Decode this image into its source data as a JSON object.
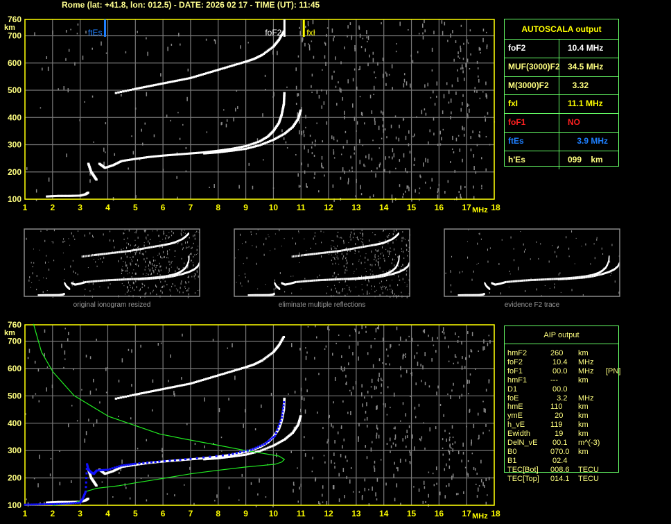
{
  "header": {
    "title": "Rome (lat: +41.8, lon: 012.5) - DATE: 2026 02 17 - TIME (UT): 11:45"
  },
  "colors": {
    "axis": "#ffff00",
    "grid": "#7a7a7a",
    "trace": "#ffffff",
    "noise": "#8a8a8a",
    "ftEs": "#1e7fff",
    "foF2": "#ffffff",
    "fxI": "#ffff00",
    "profile": "#22ee22",
    "fit": "#1010ff",
    "table_border": "#66ff66"
  },
  "autoscala": {
    "title": "AUTOSCALA output",
    "rows": [
      {
        "key": "foF2",
        "value": "10.4 MHz",
        "color": "#ffffff"
      },
      {
        "key": "MUF(3000)F2",
        "value": "34.5 MHz",
        "color": "#ffff80"
      },
      {
        "key": "M(3000)F2",
        "value": "  3.32",
        "color": "#ffff80"
      },
      {
        "key": "fxI",
        "value": "11.1 MHz",
        "color": "#ffff00"
      },
      {
        "key": "foF1",
        "value": "NO",
        "color": "#ff2020"
      },
      {
        "key": "ftEs",
        "value": "    3.9 MHz",
        "color": "#1e7fff"
      },
      {
        "key": "h'Es",
        "value": "099    km",
        "color": "#ffff80"
      }
    ]
  },
  "aip": {
    "title": "AIP output",
    "rows": [
      [
        "hmF2",
        "260",
        "km",
        ""
      ],
      [
        "foF2",
        " 10.4",
        "MHz",
        ""
      ],
      [
        "foF1",
        " 00.0",
        "MHz",
        "[PN]"
      ],
      [
        "hmF1",
        "---",
        "km",
        ""
      ],
      [
        "D1",
        " 00.0",
        "",
        ""
      ],
      [
        "foE",
        "   3.2",
        "MHz",
        ""
      ],
      [
        "hmE",
        "110",
        "km",
        ""
      ],
      [
        "ymE",
        "  20",
        "km",
        ""
      ],
      [
        "h_vE",
        "119",
        "km",
        ""
      ],
      [
        "Ewidth",
        "  19",
        "km",
        ""
      ],
      [
        "DelN_vE",
        " 00.1",
        "m^(-3)",
        ""
      ],
      [
        "B0",
        "070.0",
        "km",
        ""
      ],
      [
        "B1",
        " 02.4",
        "",
        ""
      ],
      [
        "TEC[Bot]",
        "008.6",
        "TECU",
        ""
      ],
      [
        "TEC[Top]",
        "014.1",
        "TECU",
        ""
      ]
    ]
  },
  "thumbnails": [
    {
      "caption": "original ionogram resized"
    },
    {
      "caption": "eliminate multiple reflections"
    },
    {
      "caption": "evidence F2 trace"
    }
  ],
  "chart_data": [
    {
      "type": "scatter",
      "title": "",
      "xlabel": "MHz",
      "ylabel": "km",
      "xlim": [
        1,
        18
      ],
      "ylim": [
        100,
        760
      ],
      "xticks": [
        "1",
        "2",
        "3",
        "4",
        "5",
        "6",
        "7",
        "8",
        "9",
        "10",
        "11",
        "12",
        "13",
        "14",
        "15",
        "16",
        "17",
        "18"
      ],
      "yticks": [
        "100",
        "200",
        "300",
        "400",
        "500",
        "600",
        "700",
        "760"
      ],
      "grid": true,
      "markers": [
        {
          "label": "ftEs",
          "x": 3.9
        },
        {
          "label": "foF2",
          "x": 10.4
        },
        {
          "label": "fxI",
          "x": 11.1
        }
      ],
      "series": [
        {
          "x": [
            1.8,
            2.2,
            2.6,
            3.0,
            3.2,
            3.3
          ],
          "y": [
            110,
            112,
            112,
            113,
            118,
            125
          ]
        },
        {
          "x": [
            3.3,
            3.4,
            3.5,
            3.6
          ],
          "y": [
            230,
            200,
            185,
            170
          ]
        },
        {
          "x": [
            3.7,
            3.9,
            4.2,
            4.5,
            5,
            5.5,
            6,
            6.5,
            7,
            7.5,
            8,
            8.5,
            9,
            9.5,
            9.8,
            10.0,
            10.2,
            10.3,
            10.38,
            10.4
          ],
          "y": [
            230,
            215,
            225,
            240,
            248,
            255,
            260,
            264,
            268,
            272,
            278,
            285,
            295,
            312,
            330,
            350,
            380,
            410,
            450,
            495
          ]
        },
        {
          "x": [
            7.5,
            8,
            8.5,
            9,
            9.5,
            10,
            10.4,
            10.7,
            10.9,
            11.0
          ],
          "y": [
            268,
            272,
            278,
            285,
            298,
            318,
            340,
            365,
            395,
            430
          ]
        },
        {
          "x": [
            4.3,
            5,
            5.5,
            6,
            6.5,
            7,
            7.5,
            8,
            8.5,
            9,
            9.3,
            9.6,
            10,
            10.2,
            10.4
          ],
          "y": [
            490,
            505,
            515,
            525,
            535,
            545,
            560,
            575,
            590,
            605,
            615,
            630,
            660,
            685,
            720
          ]
        }
      ]
    },
    {
      "type": "scatter",
      "title": "",
      "xlabel": "MHz",
      "ylabel": "km",
      "xlim": [
        1,
        18
      ],
      "ylim": [
        100,
        760
      ],
      "xticks": [
        "1",
        "2",
        "3",
        "4",
        "5",
        "6",
        "7",
        "8",
        "9",
        "10",
        "11",
        "12",
        "13",
        "14",
        "15",
        "16",
        "17",
        "18"
      ],
      "yticks": [
        "100",
        "200",
        "300",
        "400",
        "500",
        "600",
        "700",
        "760"
      ],
      "grid": true,
      "profile": {
        "x": [
          2.0,
          2.4,
          2.8,
          3.11,
          3.2,
          3.6,
          4.37,
          5.0,
          5.87,
          7.0,
          8.0,
          9.0,
          10.06,
          10.3,
          10.4,
          10.2,
          9.9,
          8.9,
          8.03,
          6.7,
          5.87,
          4.03,
          2.78,
          2.02,
          1.6,
          1.31
        ],
        "y": [
          100,
          103,
          110,
          120,
          150,
          162,
          171,
          182,
          196,
          215,
          228,
          240,
          250,
          258,
          268,
          280,
          285,
          302,
          319,
          344,
          361,
          425,
          501,
          587,
          660,
          763
        ]
      },
      "fit": {
        "x": [
          1.0,
          1.5,
          2.0,
          2.5,
          3.0,
          3.1,
          3.2,
          3.25,
          3.3,
          3.4,
          3.5,
          3.6,
          4.0,
          4.5,
          5.0,
          5.87,
          7.0,
          8.4,
          9.2,
          9.7,
          10.06,
          10.3,
          10.4
        ],
        "y": [
          102,
          103,
          104,
          106,
          110,
          125,
          150,
          250,
          230,
          220,
          215,
          227,
          230,
          245,
          252,
          260,
          270,
          285,
          303,
          325,
          354,
          420,
          488
        ]
      }
    }
  ]
}
